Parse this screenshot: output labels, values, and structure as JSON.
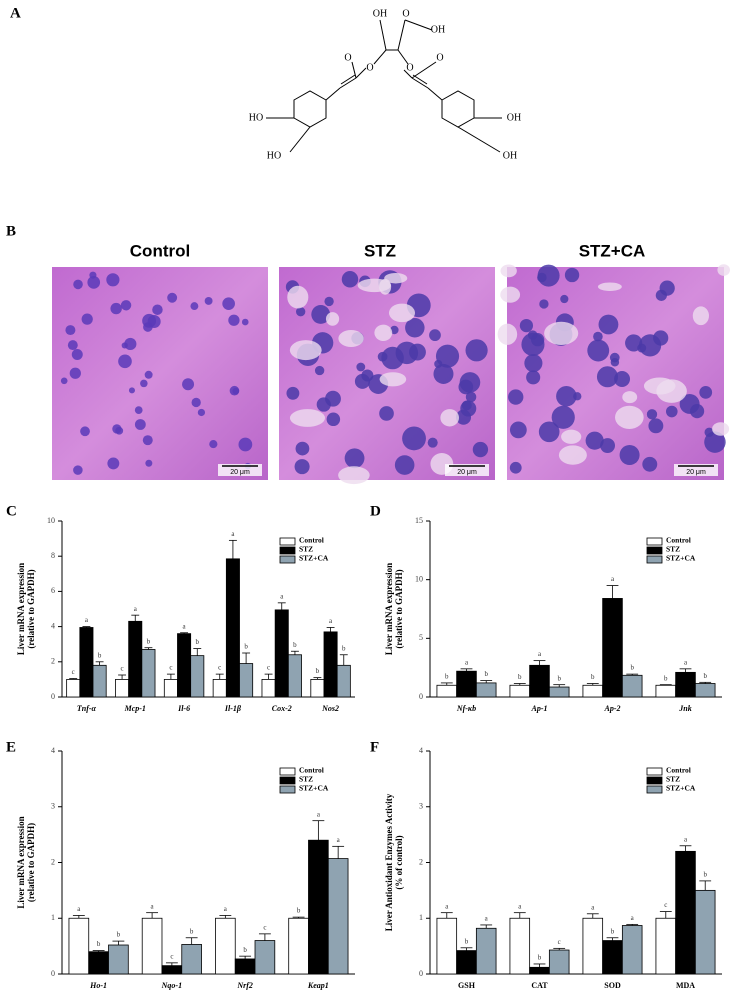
{
  "panel_labels": [
    "A",
    "B",
    "C",
    "D",
    "E",
    "F"
  ],
  "structure": {
    "labels": [
      "OH",
      "O",
      "OH",
      "O",
      "O",
      "O",
      "O",
      "HO",
      "HO",
      "OH",
      "OH"
    ]
  },
  "micrographs": {
    "titles": [
      "Control",
      "STZ",
      "STZ+CA"
    ],
    "scale_bar": "20 μm"
  },
  "chart_data": [
    {
      "type": "bar",
      "ylabel": [
        "Liver mRNA expression",
        "(relative to GAPDH)"
      ],
      "categories": [
        "Tnf-α",
        "Mcp-1",
        "Il-6",
        "Il-1β",
        "Cox-2",
        "Nos2"
      ],
      "series": [
        {
          "name": "Control",
          "color": "#ffffff",
          "values": [
            1,
            1,
            1,
            1,
            1,
            1
          ],
          "errors": [
            0.05,
            0.25,
            0.3,
            0.3,
            0.3,
            0.1
          ],
          "labels": [
            "c",
            "c",
            "c",
            "c",
            "c",
            "b"
          ]
        },
        {
          "name": "STZ",
          "color": "#000000",
          "values": [
            3.95,
            4.3,
            3.6,
            7.85,
            4.95,
            3.7
          ],
          "errors": [
            0.05,
            0.35,
            0.05,
            1.05,
            0.4,
            0.25
          ],
          "labels": [
            "a",
            "a",
            "a",
            "a",
            "a",
            "a"
          ]
        },
        {
          "name": "STZ+CA",
          "color": "#8fa3b1",
          "values": [
            1.8,
            2.7,
            2.35,
            1.9,
            2.4,
            1.8
          ],
          "errors": [
            0.2,
            0.1,
            0.4,
            0.6,
            0.2,
            0.6
          ],
          "labels": [
            "b",
            "b",
            "b",
            "b",
            "b",
            "b"
          ]
        }
      ],
      "ylim": [
        0,
        10
      ],
      "yticks": [
        0,
        2,
        4,
        6,
        8,
        10
      ],
      "legend": "upper right"
    },
    {
      "type": "bar",
      "ylabel": [
        "Liver mRNA expression",
        "(relative to GAPDH)"
      ],
      "categories": [
        "Nf-κb",
        "Ap-1",
        "Ap-2",
        "Jnk"
      ],
      "series": [
        {
          "name": "Control",
          "color": "#ffffff",
          "values": [
            1,
            1,
            1,
            1
          ],
          "errors": [
            0.2,
            0.15,
            0.15,
            0.05
          ],
          "labels": [
            "b",
            "b",
            "b",
            "b"
          ]
        },
        {
          "name": "STZ",
          "color": "#000000",
          "values": [
            2.2,
            2.7,
            8.4,
            2.1
          ],
          "errors": [
            0.2,
            0.4,
            1.1,
            0.3
          ],
          "labels": [
            "a",
            "a",
            "a",
            "a"
          ]
        },
        {
          "name": "STZ+CA",
          "color": "#8fa3b1",
          "values": [
            1.2,
            0.85,
            1.85,
            1.15
          ],
          "errors": [
            0.2,
            0.2,
            0.1,
            0.1
          ],
          "labels": [
            "b",
            "b",
            "b",
            "b"
          ]
        }
      ],
      "ylim": [
        0,
        15
      ],
      "yticks": [
        0,
        5,
        10,
        15
      ],
      "legend": "upper right"
    },
    {
      "type": "bar",
      "ylabel": [
        "Liver mRNA expression",
        "(relative to GAPDH)"
      ],
      "categories": [
        "Ho-1",
        "Nqo-1",
        "Nrf2",
        "Keap1"
      ],
      "series": [
        {
          "name": "Control",
          "color": "#ffffff",
          "values": [
            1,
            1,
            1,
            1
          ],
          "errors": [
            0.05,
            0.1,
            0.05,
            0.02
          ],
          "labels": [
            "a",
            "a",
            "a",
            "b"
          ]
        },
        {
          "name": "STZ",
          "color": "#000000",
          "values": [
            0.4,
            0.15,
            0.27,
            2.4
          ],
          "errors": [
            0.02,
            0.05,
            0.05,
            0.35
          ],
          "labels": [
            "b",
            "c",
            "b",
            "a"
          ]
        },
        {
          "name": "STZ+CA",
          "color": "#8fa3b1",
          "values": [
            0.52,
            0.53,
            0.6,
            2.07
          ],
          "errors": [
            0.07,
            0.12,
            0.12,
            0.22
          ],
          "labels": [
            "b",
            "b",
            "c",
            "a"
          ]
        }
      ],
      "ylim": [
        0,
        4
      ],
      "yticks": [
        0,
        1,
        2,
        3,
        4
      ],
      "legend": "upper right"
    },
    {
      "type": "bar",
      "ylabel": [
        "Liver Antioxidant Enzymes Activity",
        "(% of control)"
      ],
      "categories": [
        "GSH",
        "CAT",
        "SOD",
        "MDA"
      ],
      "series": [
        {
          "name": "Control",
          "color": "#ffffff",
          "values": [
            1,
            1,
            1,
            1
          ],
          "errors": [
            0.1,
            0.1,
            0.08,
            0.12
          ],
          "labels": [
            "a",
            "a",
            "a",
            "c"
          ]
        },
        {
          "name": "STZ",
          "color": "#000000",
          "values": [
            0.42,
            0.12,
            0.6,
            2.2
          ],
          "errors": [
            0.05,
            0.06,
            0.05,
            0.1
          ],
          "labels": [
            "b",
            "b",
            "b",
            "a"
          ]
        },
        {
          "name": "STZ+CA",
          "color": "#8fa3b1",
          "values": [
            0.82,
            0.43,
            0.87,
            1.5
          ],
          "errors": [
            0.06,
            0.03,
            0.02,
            0.17
          ],
          "labels": [
            "a",
            "c",
            "a",
            "b"
          ]
        }
      ],
      "ylim": [
        0,
        4
      ],
      "yticks": [
        0,
        1,
        2,
        3,
        4
      ],
      "legend": "upper right"
    }
  ]
}
